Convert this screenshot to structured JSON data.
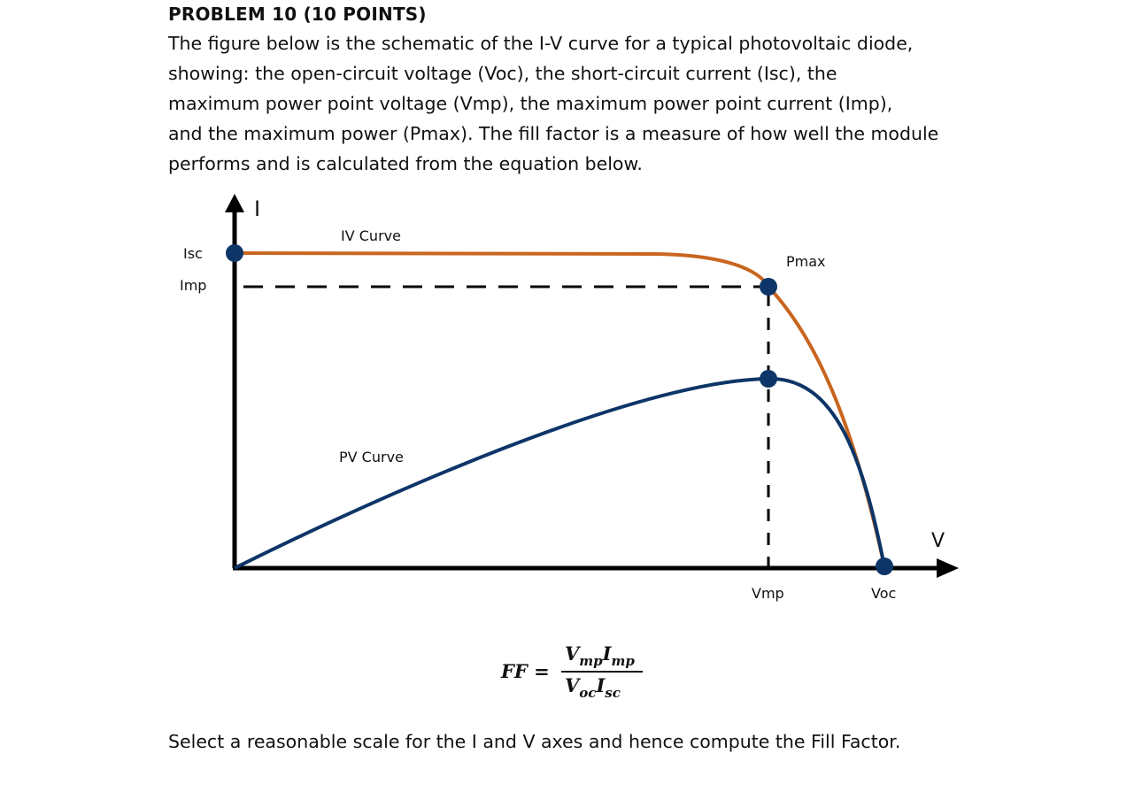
{
  "problem": {
    "title": "PROBLEM 10 (10 POINTS)",
    "line1": "The figure below is the schematic of the I-V curve for a typical photovoltaic diode,",
    "line2": "showing: the open-circuit voltage (Voc), the short-circuit current (Isc), the",
    "line3": "maximum power point voltage (Vmp), the maximum power point current (Imp),",
    "line4": "and the maximum power (Pmax). The fill factor is a measure of how well the module",
    "line5": "performs and is calculated from the equation below."
  },
  "diagram": {
    "axis_y_label": "I",
    "axis_x_label": "V",
    "isc_label": "Isc",
    "imp_label": "Imp",
    "iv_curve_label": "IV Curve",
    "pv_curve_label": "PV Curve",
    "pmax_label": "Pmax",
    "vmp_label": "Vmp",
    "voc_label": "Voc",
    "colors": {
      "iv_curve": "#c8651f",
      "pv_curve": "#0d3568",
      "marker": "#0d3568",
      "axis": "#000000"
    }
  },
  "formula": {
    "lhs": "FF =",
    "num_v": "V",
    "num_v_sub": "mp",
    "num_i": "I",
    "num_i_sub": "mp",
    "den_v": "V",
    "den_v_sub": "oc",
    "den_i": "I",
    "den_i_sub": "sc"
  },
  "footer": {
    "text": "Select a reasonable scale for the I and V axes and hence compute the Fill Factor."
  }
}
